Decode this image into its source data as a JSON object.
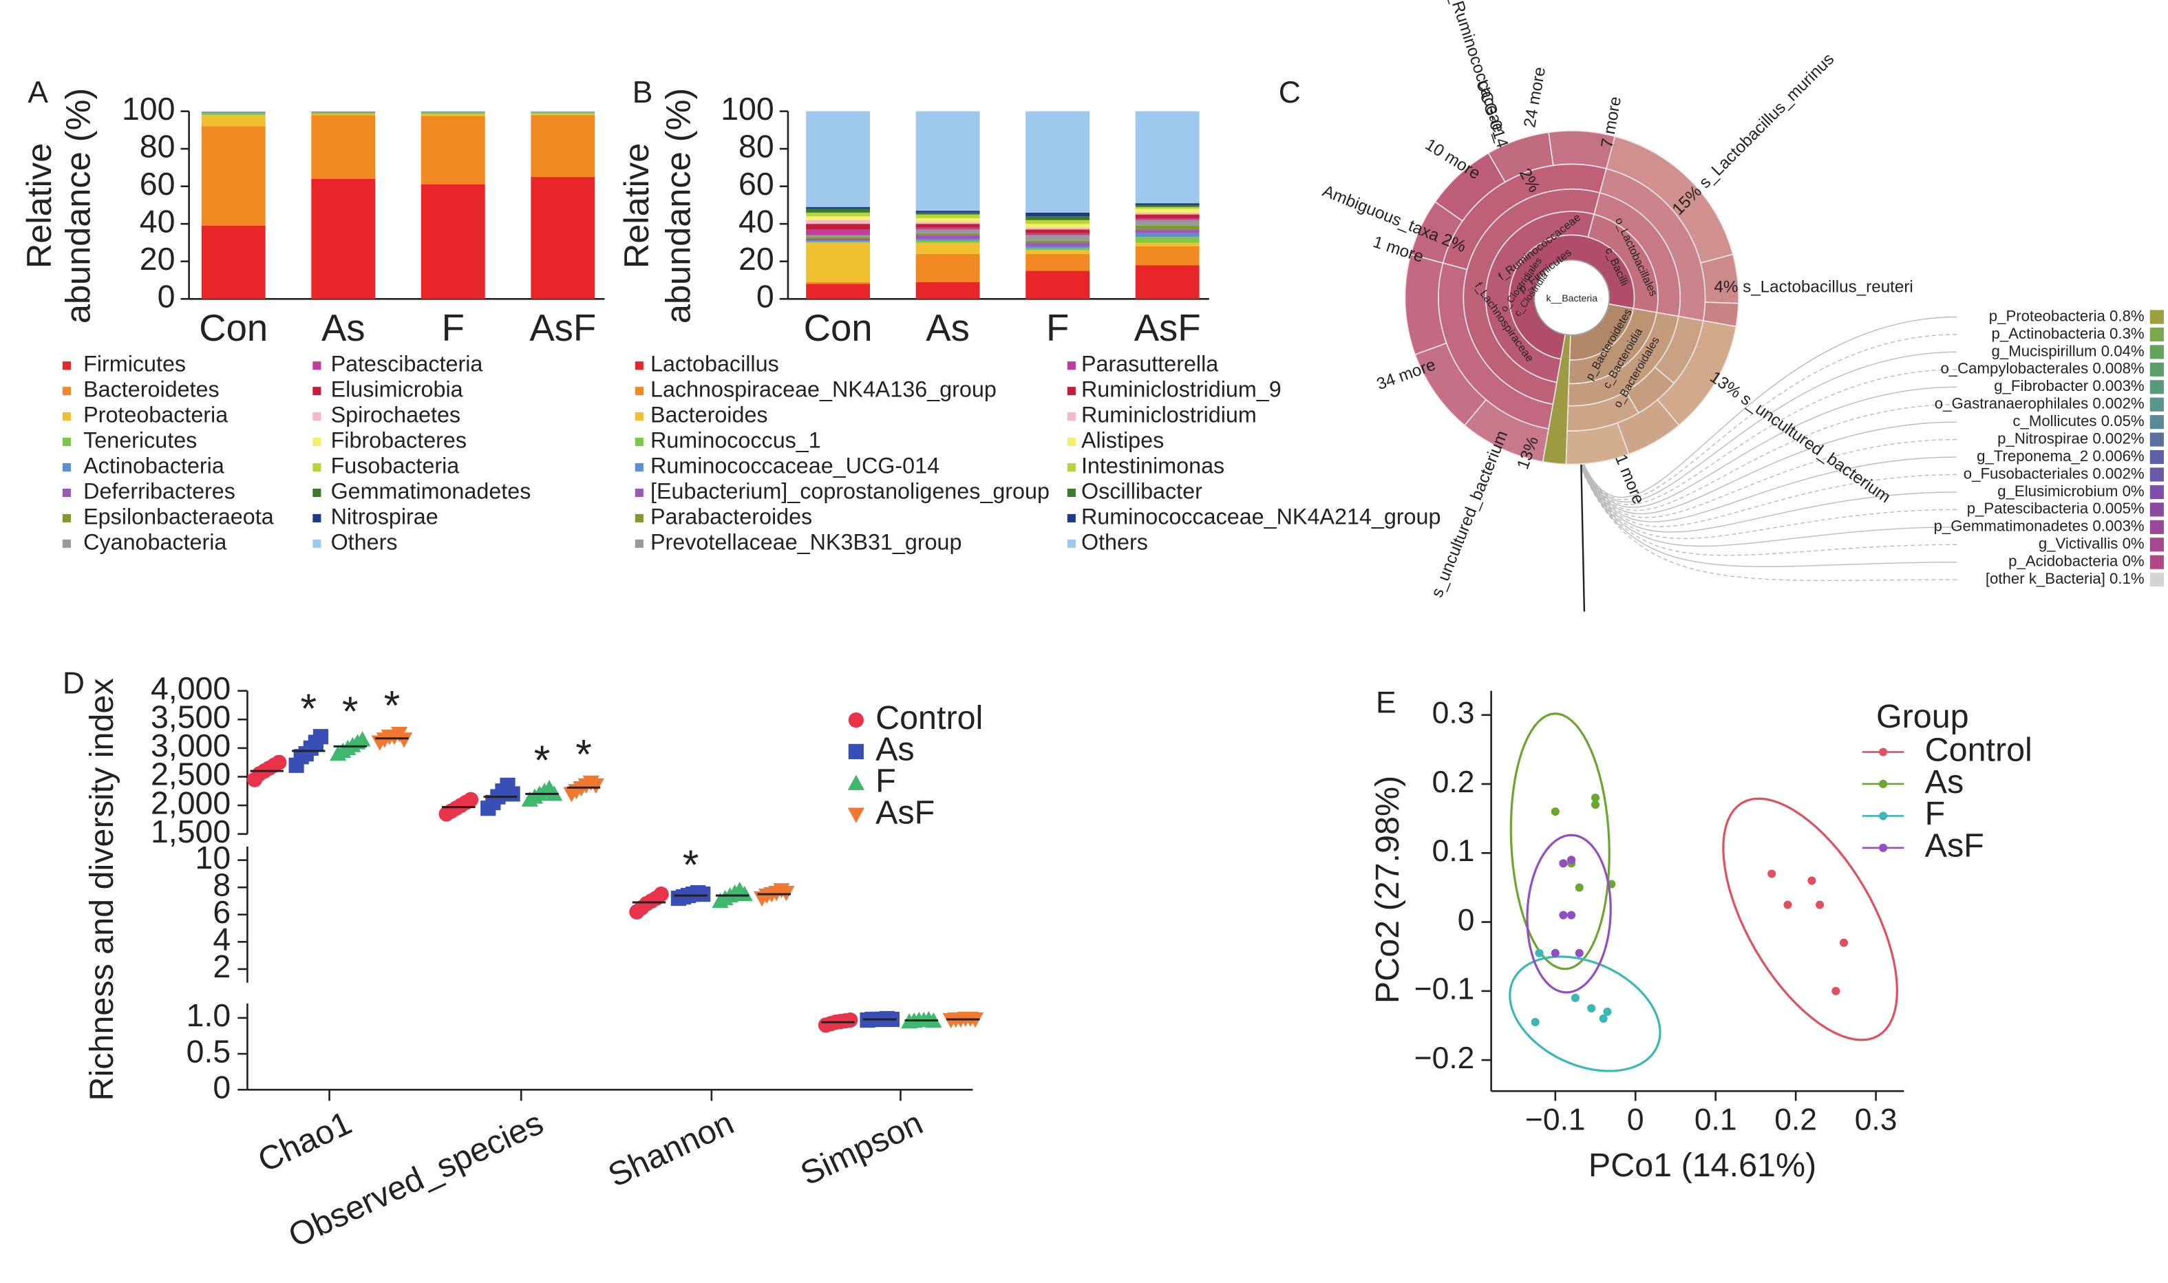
{
  "chart_data": [
    {
      "panel": "A",
      "type": "stacked_bar",
      "ylabel": [
        "Relative",
        "abundance (%)"
      ],
      "categories": [
        "Con",
        "As",
        "F",
        "AsF"
      ],
      "ylim": [
        0,
        100
      ],
      "yticks": [
        0,
        20,
        40,
        60,
        80,
        100
      ],
      "series": [
        {
          "name": "Firmicutes",
          "color": "#e8262a",
          "values": [
            39,
            64,
            61,
            65
          ]
        },
        {
          "name": "Bacteroidetes",
          "color": "#f28a24",
          "values": [
            53,
            34,
            36.5,
            33
          ]
        },
        {
          "name": "Proteobacteria",
          "color": "#f0c030",
          "values": [
            6,
            0.5,
            1,
            0.8
          ]
        },
        {
          "name": "Tenericutes",
          "color": "#7ac943",
          "values": [
            1,
            0.8,
            1,
            0.8
          ]
        },
        {
          "name": "Actinobacteria",
          "color": "#5b8fd6",
          "values": [
            0.3,
            0.2,
            0.2,
            0.2
          ]
        },
        {
          "name": "Deferribacteres",
          "color": "#9b59b6",
          "values": [
            0.2,
            0.2,
            0.1,
            0.1
          ]
        },
        {
          "name": "Epsilonbacteraeota",
          "color": "#7f9a2e",
          "values": [
            0.1,
            0.1,
            0.1,
            0
          ]
        },
        {
          "name": "Cyanobacteria",
          "color": "#999999",
          "values": [
            0.1,
            0.1,
            0,
            0
          ]
        },
        {
          "name": "Patescibacteria",
          "color": "#c23ca0",
          "values": [
            0.1,
            0,
            0,
            0
          ]
        },
        {
          "name": "Elusimicrobia",
          "color": "#c0203a",
          "values": [
            0,
            0,
            0,
            0
          ]
        },
        {
          "name": "Spirochaetes",
          "color": "#f5b8c8",
          "values": [
            0,
            0,
            0,
            0
          ]
        },
        {
          "name": "Fibrobacteres",
          "color": "#f5f06a",
          "values": [
            0,
            0,
            0,
            0
          ]
        },
        {
          "name": "Fusobacteria",
          "color": "#b8d43a",
          "values": [
            0,
            0,
            0,
            0
          ]
        },
        {
          "name": "Gemmatimonadetes",
          "color": "#3a7a2a",
          "values": [
            0,
            0,
            0,
            0
          ]
        },
        {
          "name": "Nitrospirae",
          "color": "#1f3a8a",
          "values": [
            0,
            0,
            0,
            0
          ]
        },
        {
          "name": "Others",
          "color": "#9ec8ec",
          "values": [
            0.2,
            0.1,
            0.1,
            0.1
          ]
        }
      ]
    },
    {
      "panel": "B",
      "type": "stacked_bar",
      "ylabel": [
        "Relative",
        "abundance (%)"
      ],
      "categories": [
        "Con",
        "As",
        "F",
        "AsF"
      ],
      "ylim": [
        0,
        100
      ],
      "yticks": [
        0,
        20,
        40,
        60,
        80,
        100
      ],
      "series": [
        {
          "name": "Lactobacillus",
          "color": "#e8262a",
          "values": [
            8,
            9,
            15,
            18
          ]
        },
        {
          "name": "Lachnospiraceae_NK4A136_group",
          "color": "#f28a24",
          "values": [
            1,
            15,
            9,
            10
          ]
        },
        {
          "name": "Bacteroides",
          "color": "#f0c030",
          "values": [
            21,
            6,
            2,
            2
          ]
        },
        {
          "name": "Ruminococcus_1",
          "color": "#7ac943",
          "values": [
            0.5,
            1,
            1,
            3
          ]
        },
        {
          "name": "Ruminococcaceae_UCG-014",
          "color": "#5b8fd6",
          "values": [
            0.5,
            1,
            1,
            2
          ]
        },
        {
          "name": "[Eubacterium]_coprostanoligenes_group",
          "color": "#9b59b6",
          "values": [
            1,
            2,
            2,
            2
          ]
        },
        {
          "name": "Parabacteroides",
          "color": "#7f9a2e",
          "values": [
            1,
            1,
            1,
            2
          ]
        },
        {
          "name": "Prevotellaceae_NK3B31_group",
          "color": "#999999",
          "values": [
            1,
            2,
            3,
            3
          ]
        },
        {
          "name": "Parasutterella",
          "color": "#c23ca0",
          "values": [
            3,
            1,
            1,
            1
          ]
        },
        {
          "name": "Ruminiclostridium_9",
          "color": "#c0203a",
          "values": [
            3,
            2,
            2,
            2
          ]
        },
        {
          "name": "Ruminiclostridium",
          "color": "#f5b8c8",
          "values": [
            2,
            1,
            1,
            1
          ]
        },
        {
          "name": "Alistipes",
          "color": "#f5f06a",
          "values": [
            2,
            2,
            2,
            2
          ]
        },
        {
          "name": "Intestinimonas",
          "color": "#b8d43a",
          "values": [
            2,
            2,
            2,
            1
          ]
        },
        {
          "name": "Oscillibacter",
          "color": "#3a7a2a",
          "values": [
            2,
            1,
            2,
            1
          ]
        },
        {
          "name": "Ruminococcaceae_NK4A214_group",
          "color": "#1f3a8a",
          "values": [
            1,
            1,
            2,
            1
          ]
        },
        {
          "name": "Others",
          "color": "#9ec8ec",
          "values": [
            51,
            53,
            54,
            49
          ]
        }
      ]
    },
    {
      "panel": "C",
      "type": "krona",
      "center_label": "k__Bacteria",
      "labels": [
        "g_Ruminococcaceae_",
        "UCG-014",
        "24 more",
        "7 more",
        "10 more",
        "2%",
        "15% s_Lactobacillus_murinus",
        "Ambiguous_taxa 2%",
        "1 more",
        "f_Ruminococcaceae",
        "p_Firmicutes",
        "o_Clostridiales",
        "c_Clostridia",
        "o_Lactobacillales",
        "c_Bacilli",
        "4% s_Lactobacillus_reuteri",
        "f_Lachnospiraceae",
        "p_Bacteroidetes",
        "c_Bacteroidia",
        "o_Bacteroidales",
        "13% s_uncultured_bacterium",
        "34 more",
        "13%",
        "s_uncultured_bacterium",
        "1 more"
      ],
      "legend": [
        {
          "label": "p_Proteobacteria 0.8%",
          "color": "#9aa040"
        },
        {
          "label": "p_Actinobacteria 0.3%",
          "color": "#7aa84f"
        },
        {
          "label": "g_Mucispirillum 0.04%",
          "color": "#62a45c"
        },
        {
          "label": "o_Campylobacterales 0.008%",
          "color": "#5a9e6c"
        },
        {
          "label": "g_Fibrobacter 0.003%",
          "color": "#5a9a7c"
        },
        {
          "label": "o_Gastranaerophilales 0.002%",
          "color": "#5a948c"
        },
        {
          "label": "c_Mollicutes 0.05%",
          "color": "#5a8a9a"
        },
        {
          "label": "p_Nitrospirae 0.002%",
          "color": "#5a70a0"
        },
        {
          "label": "g_Treponema_2 0.006%",
          "color": "#5e60a8"
        },
        {
          "label": "o_Fusobacteriales 0.002%",
          "color": "#6a5aa8"
        },
        {
          "label": "g_Elusimicrobium 0%",
          "color": "#7a50a8"
        },
        {
          "label": "p_Patescibacteria 0.005%",
          "color": "#8a4aa0"
        },
        {
          "label": "p_Gemmatimonadetes 0.003%",
          "color": "#9a4898"
        },
        {
          "label": "g_Victivallis 0%",
          "color": "#a84890"
        },
        {
          "label": "p_Acidobacteria 0%",
          "color": "#b04888"
        },
        {
          "label": "[other k_Bacteria] 0.1%",
          "color": "#d4d4d4"
        }
      ]
    },
    {
      "panel": "D",
      "type": "dot",
      "ylabel": "Richness and diversity index",
      "categories": [
        "Chao1",
        "Observed_species",
        "Shannon",
        "Simpson"
      ],
      "category_axis": [
        0,
        0,
        1,
        2
      ],
      "yaxes": [
        {
          "ylim": [
            1500,
            4000
          ],
          "yticks": [
            {
              "value": 1500,
              "label": "1,500"
            },
            {
              "value": 2000,
              "label": "2,000"
            },
            {
              "value": 2500,
              "label": "2,500"
            },
            {
              "value": 3000,
              "label": "3,000"
            },
            {
              "value": 3500,
              "label": "3,500"
            },
            {
              "value": 4000,
              "label": "4,000"
            }
          ]
        },
        {
          "ylim": [
            1,
            11
          ],
          "yticks": [
            2,
            4,
            6,
            8,
            10
          ]
        },
        {
          "ylim": [
            0,
            1.2
          ],
          "yticks": [
            0,
            0.5,
            {
              "value": 1,
              "label": "1.0"
            }
          ]
        }
      ],
      "series": [
        {
          "name": "Control",
          "color": "#e8334a",
          "marker": "circle",
          "values": [
            [
              2450,
              2550,
              2600,
              2650,
              2700,
              2750
            ],
            [
              1850,
              1900,
              1950,
              2000,
              2050,
              2100
            ],
            [
              6.2,
              6.5,
              6.8,
              7.0,
              7.2,
              7.5
            ],
            [
              0.9,
              0.92,
              0.94,
              0.95,
              0.96,
              0.97
            ]
          ],
          "means": [
            2600,
            1970,
            6.9,
            0.94
          ]
        },
        {
          "name": "As",
          "color": "#3a4fb5",
          "marker": "square",
          "values": [
            [
              2700,
              2850,
              2900,
              3000,
              3100,
              3200
            ],
            [
              1950,
              2050,
              2150,
              2250,
              2350,
              2200
            ],
            [
              7.2,
              7.3,
              7.4,
              7.5,
              7.6,
              7.5
            ],
            [
              0.97,
              0.98,
              0.98,
              0.98,
              0.99,
              0.98
            ]
          ],
          "means": [
            2950,
            2150,
            7.4,
            0.98
          ],
          "significance": [
            "*",
            null,
            "*",
            null
          ]
        },
        {
          "name": "F",
          "color": "#3fb86e",
          "marker": "triangle",
          "values": [
            [
              2900,
              2950,
              3000,
              3050,
              3100,
              3150
            ],
            [
              2100,
              2150,
              2200,
              2250,
              2300,
              2200
            ],
            [
              7.0,
              7.2,
              7.4,
              7.6,
              7.8,
              7.5
            ],
            [
              0.95,
              0.96,
              0.97,
              0.97,
              0.98,
              0.96
            ]
          ],
          "means": [
            3030,
            2200,
            7.4,
            0.965
          ],
          "significance": [
            "*",
            "*",
            null,
            null
          ]
        },
        {
          "name": "AsF",
          "color": "#f07830",
          "marker": "triangle-down",
          "values": [
            [
              3100,
              3150,
              3200,
              3200,
              3250,
              3150
            ],
            [
              2200,
              2250,
              2300,
              2350,
              2400,
              2350
            ],
            [
              7.2,
              7.4,
              7.5,
              7.6,
              7.8,
              7.6
            ],
            [
              0.97,
              0.98,
              0.98,
              0.99,
              0.99,
              0.98
            ]
          ],
          "means": [
            3170,
            2310,
            7.5,
            0.98
          ],
          "significance": [
            "*",
            "*",
            null,
            null
          ]
        }
      ]
    },
    {
      "panel": "E",
      "type": "scatter",
      "xlabel": "PCo1 (14.61%)",
      "ylabel": "PCo2 (27.98%)",
      "legend_title": "Group",
      "xlim": [
        -0.18,
        0.335
      ],
      "ylim": [
        -0.245,
        0.335
      ],
      "xticks": [
        {
          "value": -0.1,
          "label": "−0.1"
        },
        0,
        0.1,
        0.2,
        0.3
      ],
      "yticks": [
        {
          "value": -0.2,
          "label": "−0.2"
        },
        {
          "value": -0.1,
          "label": "−0.1"
        },
        0,
        0.1,
        0.2,
        0.3
      ],
      "series": [
        {
          "name": "Control",
          "color": "#e0505e",
          "x": [
            0.17,
            0.22,
            0.19,
            0.23,
            0.26,
            0.25
          ],
          "y": [
            0.07,
            0.06,
            0.025,
            0.025,
            -0.03,
            -0.1
          ],
          "ellipse": {
            "center": [
              0.218,
              0.004
            ],
            "axis1": [
              0.0845,
              -0.169
            ],
            "axis2": [
              0.068,
              0.045
            ]
          }
        },
        {
          "name": "As",
          "color": "#6aa630",
          "x": [
            -0.1,
            -0.05,
            -0.05,
            -0.07,
            -0.03,
            -0.08
          ],
          "y": [
            0.16,
            0.18,
            0.17,
            0.05,
            0.055,
            0.085
          ],
          "ellipse": {
            "center": [
              -0.094,
              0.117
            ],
            "axis1": [
              0.007,
              -0.185
            ],
            "axis2": [
              0.061,
              0.003
            ]
          }
        },
        {
          "name": "F",
          "color": "#3ab8b8",
          "x": [
            -0.12,
            -0.125,
            -0.075,
            -0.035,
            -0.04,
            -0.055
          ],
          "y": [
            -0.045,
            -0.145,
            -0.11,
            -0.13,
            -0.14,
            -0.125
          ],
          "ellipse": {
            "center": [
              -0.063,
              -0.133
            ],
            "axis1": [
              0.0897,
              -0.0484
            ],
            "axis2": [
              -0.0272,
              -0.0673
            ]
          }
        },
        {
          "name": "AsF",
          "color": "#9050c0",
          "x": [
            -0.08,
            -0.09,
            -0.09,
            -0.08,
            -0.07,
            -0.1
          ],
          "y": [
            0.09,
            0.085,
            0.01,
            0.01,
            -0.045,
            -0.045
          ],
          "ellipse": {
            "center": [
              -0.083,
              0.012
            ],
            "axis1": [
              0.003,
              0.114
            ],
            "axis2": [
              0.052,
              0
            ]
          }
        }
      ]
    }
  ]
}
